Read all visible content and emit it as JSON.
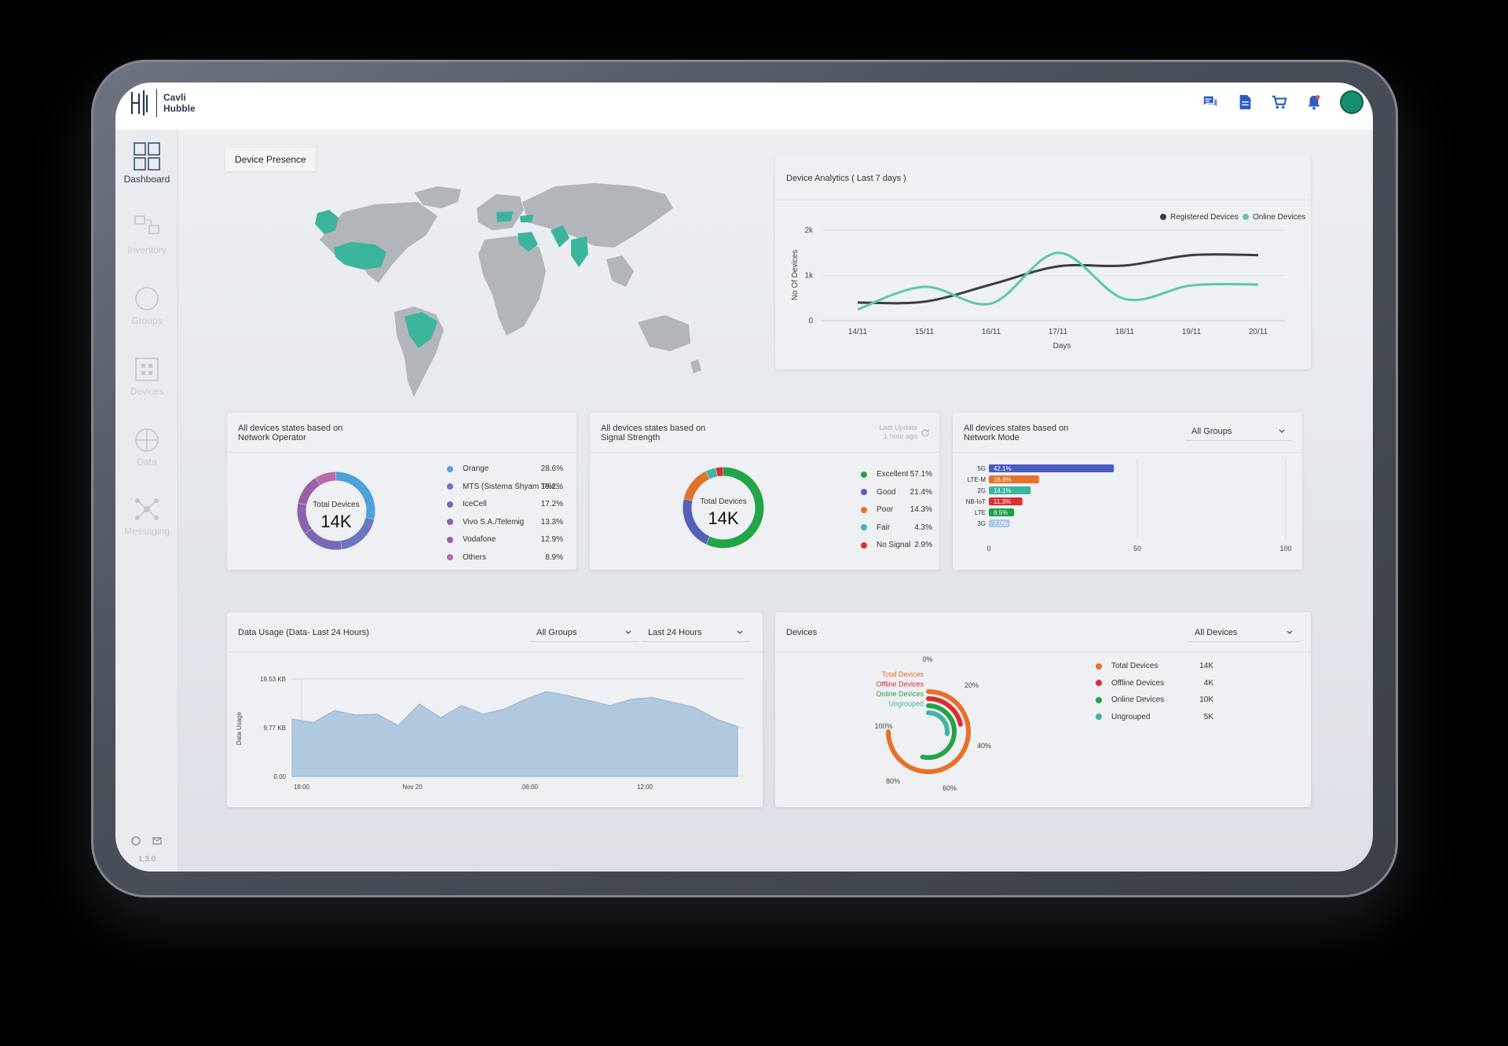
{
  "brand": {
    "line1": "Cavli",
    "line2": "Hubble"
  },
  "sidebar": {
    "items": [
      {
        "label": "Dashboard",
        "icon": "dashboard-icon",
        "active": true
      },
      {
        "label": "Inventory",
        "icon": "inventory-icon",
        "active": false
      },
      {
        "label": "Groups",
        "icon": "groups-icon",
        "active": false
      },
      {
        "label": "Devices",
        "icon": "devices-icon",
        "active": false
      },
      {
        "label": "Data",
        "icon": "data-icon",
        "active": false
      },
      {
        "label": "Messaging",
        "icon": "messaging-icon",
        "active": false
      }
    ],
    "version": "1.3.0"
  },
  "device_presence": {
    "title": "Device Presence"
  },
  "device_analytics": {
    "title": "Device Analytics ( Last 7 days )",
    "chart_data": {
      "type": "line",
      "x": [
        "14/11",
        "15/11",
        "16/11",
        "17/11",
        "18/11",
        "19/11",
        "20/11"
      ],
      "xlabel": "Days",
      "ylabel": "No Of Devices",
      "yticks": [
        "0",
        "1k",
        "2k"
      ],
      "ylim": [
        0,
        2000
      ],
      "legend": "top-right",
      "series": [
        {
          "name": "Registered Devices",
          "color": "#3a3d42",
          "values": [
            400,
            420,
            800,
            1200,
            1220,
            1450,
            1450
          ]
        },
        {
          "name": "Online Devices",
          "color": "#5cc7ad",
          "values": [
            250,
            750,
            380,
            1500,
            480,
            780,
            800
          ]
        }
      ]
    }
  },
  "network_operator": {
    "title_line1": "All devices states based on",
    "title_line2": "Network Operator",
    "center_label": "Total Devices",
    "center_value": "14K",
    "chart_data": {
      "type": "pie",
      "labels": [
        "Orange",
        "MTS (Sistema Shyam Tele...",
        "IceCell",
        "Vivo S.A./Telemig",
        "Vodafone",
        "Others"
      ],
      "display": [
        "28.6%",
        "19.2%",
        "17.2%",
        "13.3%",
        "12.9%",
        "8.9%"
      ],
      "values": [
        28.6,
        19.2,
        17.2,
        13.3,
        12.9,
        8.9
      ],
      "colors": [
        "#4da3d9",
        "#6c76bf",
        "#7a67b8",
        "#8b63ad",
        "#9b5ea8",
        "#b86aa8"
      ]
    }
  },
  "signal_strength": {
    "title_line1": "All devices states based on",
    "title_line2": "Signal Strength",
    "last_update_line1": "Last Update",
    "last_update_line2": "1 hour ago",
    "center_label": "Total Devices",
    "center_value": "14K",
    "chart_data": {
      "type": "pie",
      "labels": [
        "Excellent",
        "Good",
        "Poor",
        "Fair",
        "No Signal"
      ],
      "display": [
        "57.1%",
        "21.4%",
        "14.3%",
        "4.3%",
        "2.9%"
      ],
      "values": [
        57.1,
        21.4,
        14.3,
        4.3,
        2.9
      ],
      "colors": [
        "#22a447",
        "#5560b8",
        "#e0732a",
        "#45b3a0",
        "#d9302e"
      ]
    }
  },
  "network_mode": {
    "title_line1": "All devices states based on",
    "title_line2": "Network Mode",
    "dropdown": "All Groups",
    "chart_data": {
      "type": "bar",
      "categories": [
        "5G",
        "LTE-M",
        "2G",
        "NB-IoT",
        "LTE",
        "3G"
      ],
      "values": [
        42.1,
        16.9,
        14.1,
        11.3,
        8.5,
        7.0
      ],
      "labels": [
        "42.1%",
        "16.9%",
        "14.1%",
        "11.3%",
        "8.5%",
        "7.0%"
      ],
      "colors": [
        "#4a5bbf",
        "#e8702b",
        "#3bb59c",
        "#dc2f2f",
        "#1e9e47",
        "#a9c9e8"
      ],
      "xticks": [
        "0",
        "50",
        "100"
      ],
      "xlim": [
        0,
        100
      ]
    }
  },
  "data_usage": {
    "title": "Data Usage (Data- Last 24 Hours)",
    "group_dropdown": "All Groups",
    "range_dropdown": "Last 24 Hours",
    "chart_data": {
      "type": "area",
      "ylabel": "Data Usage",
      "yticks": [
        "0.00",
        "9.77 KB",
        "19.53 KB"
      ],
      "xticks": [
        "18:00",
        "Nov 20",
        "06:00",
        "12:00"
      ],
      "ylim": [
        0,
        19.53
      ],
      "color": "#a9c4dd",
      "values": [
        11.5,
        10.8,
        13.2,
        12.3,
        12.5,
        10.2,
        14.5,
        11.8,
        14.2,
        12.5,
        13.5,
        15.5,
        17.0,
        16.2,
        15.2,
        14.2,
        15.5,
        15.8,
        14.8,
        13.8,
        11.5,
        10.0
      ]
    }
  },
  "devices": {
    "title": "Devices",
    "dropdown": "All Devices",
    "chart_data": {
      "type": "radial-bar",
      "labels": [
        "Total Devices",
        "Offline Devices",
        "Online Devices",
        "Ungrouped"
      ],
      "display": [
        "14K",
        "4K",
        "10K",
        "5K"
      ],
      "values": [
        14,
        4,
        10,
        5
      ],
      "colors": [
        "#e8702b",
        "#d9302e",
        "#22a447",
        "#45b3a0"
      ],
      "ticks": [
        "0%",
        "20%",
        "40%",
        "60%",
        "80%",
        "100%"
      ]
    }
  }
}
